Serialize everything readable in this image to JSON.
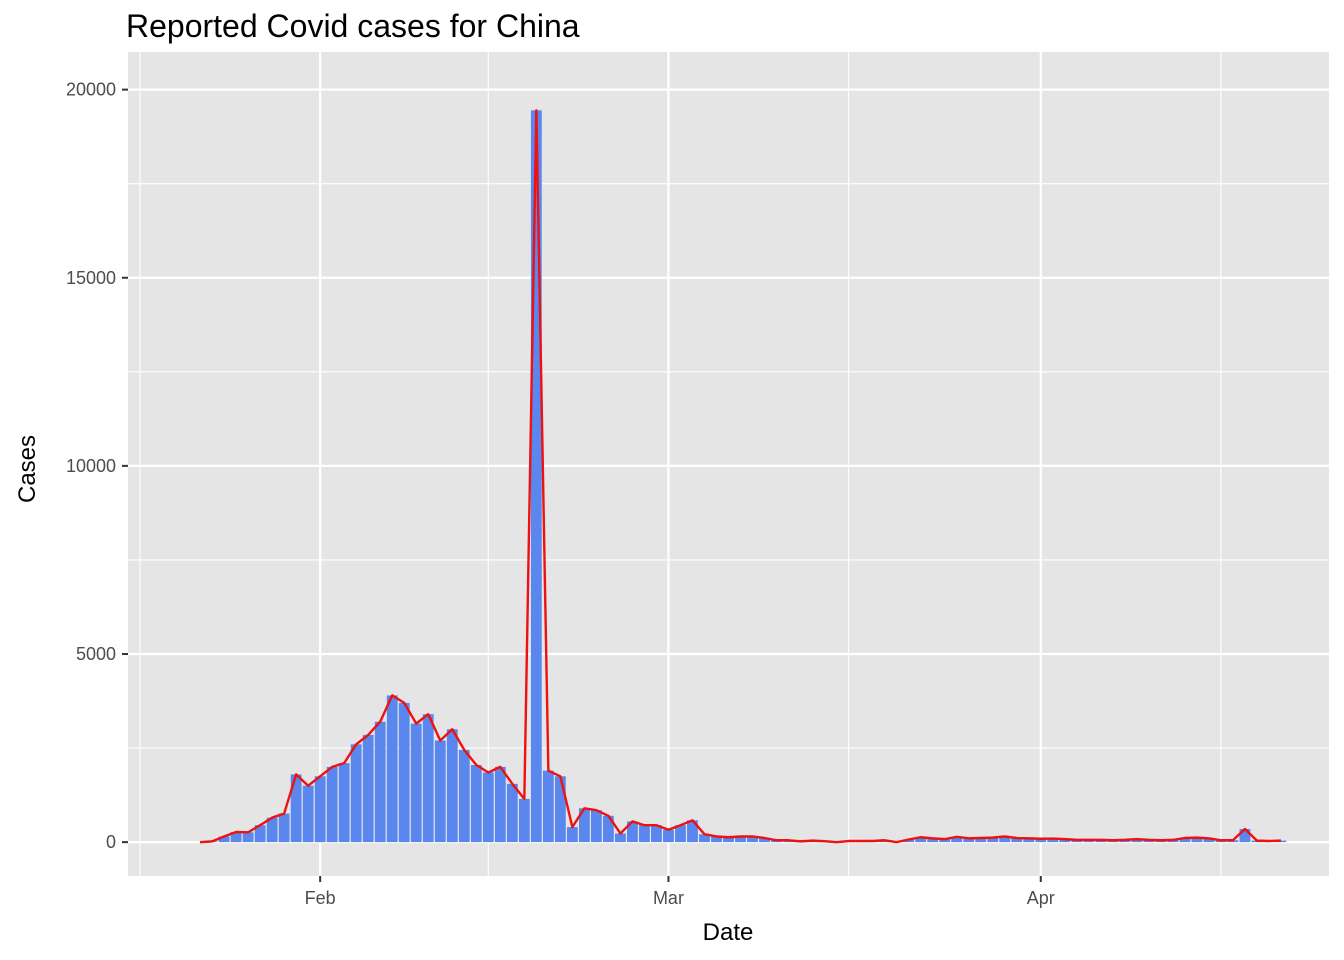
{
  "chart_data": {
    "type": "bar",
    "title": "Reported Covid cases for China",
    "xlabel": "Date",
    "ylabel": "Cases",
    "ylim": [
      -900,
      21000
    ],
    "xlim": [
      "2020-01-16",
      "2020-04-25"
    ],
    "y_ticks": [
      0,
      5000,
      10000,
      15000,
      20000
    ],
    "x_ticks": [
      {
        "date": "2020-02-01",
        "label": "Feb"
      },
      {
        "date": "2020-03-01",
        "label": "Mar"
      },
      {
        "date": "2020-04-01",
        "label": "Apr"
      }
    ],
    "x_minor_ticks": [
      "2020-01-17",
      "2020-02-15",
      "2020-03-16",
      "2020-04-16"
    ],
    "grid": true,
    "colors": {
      "panel": "#e5e5e5",
      "grid": "#ffffff",
      "bar": "#5a87ed",
      "line": "#ee1111"
    },
    "series": [
      {
        "name": "",
        "kind": "bar+line",
        "x": [
          "2020-01-22",
          "2020-01-23",
          "2020-01-24",
          "2020-01-25",
          "2020-01-26",
          "2020-01-27",
          "2020-01-28",
          "2020-01-29",
          "2020-01-30",
          "2020-01-31",
          "2020-02-01",
          "2020-02-02",
          "2020-02-03",
          "2020-02-04",
          "2020-02-05",
          "2020-02-06",
          "2020-02-07",
          "2020-02-08",
          "2020-02-09",
          "2020-02-10",
          "2020-02-11",
          "2020-02-12",
          "2020-02-13",
          "2020-02-14",
          "2020-02-15",
          "2020-02-16",
          "2020-02-17",
          "2020-02-18",
          "2020-02-19",
          "2020-02-20",
          "2020-02-21",
          "2020-02-22",
          "2020-02-23",
          "2020-02-24",
          "2020-02-25",
          "2020-02-26",
          "2020-02-27",
          "2020-02-28",
          "2020-02-29",
          "2020-03-01",
          "2020-03-02",
          "2020-03-03",
          "2020-03-04",
          "2020-03-05",
          "2020-03-06",
          "2020-03-07",
          "2020-03-08",
          "2020-03-09",
          "2020-03-10",
          "2020-03-11",
          "2020-03-12",
          "2020-03-13",
          "2020-03-14",
          "2020-03-15",
          "2020-03-16",
          "2020-03-17",
          "2020-03-18",
          "2020-03-19",
          "2020-03-20",
          "2020-03-21",
          "2020-03-22",
          "2020-03-23",
          "2020-03-24",
          "2020-03-25",
          "2020-03-26",
          "2020-03-27",
          "2020-03-28",
          "2020-03-29",
          "2020-03-30",
          "2020-03-31",
          "2020-04-01",
          "2020-04-02",
          "2020-04-03",
          "2020-04-04",
          "2020-04-05",
          "2020-04-06",
          "2020-04-07",
          "2020-04-08",
          "2020-04-09",
          "2020-04-10",
          "2020-04-11",
          "2020-04-12",
          "2020-04-13",
          "2020-04-14",
          "2020-04-15",
          "2020-04-16",
          "2020-04-17",
          "2020-04-18",
          "2020-04-19",
          "2020-04-20",
          "2020-04-21"
        ],
        "values": [
          0,
          20,
          150,
          270,
          260,
          450,
          650,
          760,
          1800,
          1500,
          1750,
          2000,
          2100,
          2600,
          2850,
          3200,
          3900,
          3700,
          3150,
          3400,
          2700,
          3000,
          2450,
          2050,
          1850,
          2000,
          1550,
          1150,
          19450,
          1900,
          1750,
          400,
          900,
          850,
          700,
          230,
          550,
          450,
          450,
          330,
          450,
          580,
          210,
          150,
          130,
          150,
          150,
          110,
          50,
          50,
          20,
          40,
          25,
          0,
          30,
          30,
          30,
          50,
          0,
          70,
          130,
          100,
          80,
          140,
          100,
          110,
          120,
          150,
          110,
          100,
          90,
          95,
          80,
          60,
          60,
          60,
          50,
          60,
          80,
          60,
          50,
          60,
          110,
          120,
          100,
          50,
          50,
          350,
          40,
          30,
          40
        ]
      }
    ]
  }
}
